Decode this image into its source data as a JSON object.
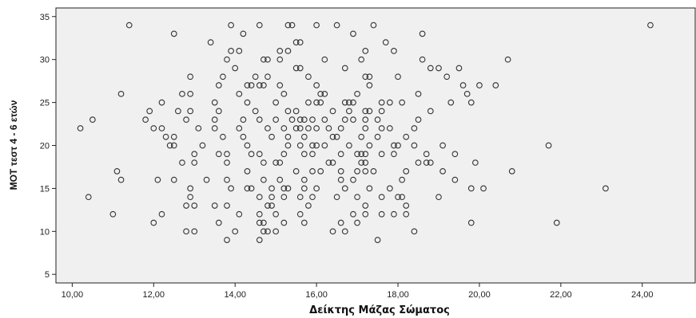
{
  "chart_data": {
    "type": "scatter",
    "title": "",
    "xlabel": "Δείκτης Μάζας Σώματος",
    "ylabel": "MOT τεστ 4 - 6 ετών",
    "xlim": [
      9.6,
      25.3
    ],
    "ylim": [
      4,
      36
    ],
    "x_ticks": [
      10,
      12,
      14,
      16,
      18,
      20,
      22,
      24
    ],
    "x_tick_labels": [
      "10,00",
      "12,00",
      "14,00",
      "16,00",
      "18,00",
      "20,00",
      "22,00",
      "24,00"
    ],
    "y_ticks": [
      5,
      10,
      15,
      20,
      25,
      30,
      35
    ],
    "y_tick_labels": [
      "5",
      "10",
      "15",
      "20",
      "25",
      "30",
      "35"
    ],
    "grid": false,
    "legend": "none",
    "colors": {
      "plot_bg": "#f0f0f0",
      "marker": "#333333"
    },
    "points": [
      [
        11.4,
        34
      ],
      [
        13.9,
        34
      ],
      [
        14.6,
        34
      ],
      [
        15.3,
        34
      ],
      [
        15.4,
        34
      ],
      [
        16.0,
        34
      ],
      [
        16.5,
        34
      ],
      [
        17.4,
        34
      ],
      [
        24.2,
        34
      ],
      [
        12.5,
        33
      ],
      [
        14.2,
        33
      ],
      [
        16.9,
        33
      ],
      [
        18.6,
        33
      ],
      [
        13.4,
        32
      ],
      [
        15.5,
        32
      ],
      [
        15.6,
        32
      ],
      [
        17.7,
        32
      ],
      [
        13.9,
        31
      ],
      [
        14.1,
        31
      ],
      [
        15.1,
        31
      ],
      [
        15.3,
        31
      ],
      [
        17.2,
        31
      ],
      [
        17.9,
        31
      ],
      [
        13.8,
        30
      ],
      [
        14.7,
        30
      ],
      [
        14.8,
        30
      ],
      [
        15.1,
        30
      ],
      [
        16.2,
        30
      ],
      [
        17.1,
        30
      ],
      [
        18.6,
        30
      ],
      [
        20.7,
        30
      ],
      [
        14.0,
        29
      ],
      [
        15.5,
        29
      ],
      [
        15.6,
        29
      ],
      [
        16.7,
        29
      ],
      [
        18.8,
        29
      ],
      [
        19.0,
        29
      ],
      [
        19.5,
        29
      ],
      [
        12.9,
        28
      ],
      [
        13.7,
        28
      ],
      [
        14.5,
        28
      ],
      [
        14.8,
        28
      ],
      [
        15.8,
        28
      ],
      [
        17.2,
        28
      ],
      [
        17.3,
        28
      ],
      [
        18.0,
        28
      ],
      [
        19.2,
        28
      ],
      [
        13.6,
        27
      ],
      [
        14.3,
        27
      ],
      [
        14.4,
        27
      ],
      [
        14.6,
        27
      ],
      [
        14.7,
        27
      ],
      [
        15.1,
        27
      ],
      [
        16.0,
        27
      ],
      [
        17.3,
        27
      ],
      [
        19.6,
        27
      ],
      [
        20.0,
        27
      ],
      [
        20.4,
        27
      ],
      [
        11.2,
        26
      ],
      [
        12.7,
        26
      ],
      [
        12.9,
        26
      ],
      [
        14.1,
        26
      ],
      [
        15.2,
        26
      ],
      [
        16.1,
        26
      ],
      [
        16.2,
        26
      ],
      [
        17.0,
        26
      ],
      [
        18.5,
        26
      ],
      [
        19.7,
        26
      ],
      [
        12.2,
        25
      ],
      [
        13.5,
        25
      ],
      [
        14.3,
        25
      ],
      [
        15.0,
        25
      ],
      [
        15.8,
        25
      ],
      [
        16.0,
        25
      ],
      [
        16.1,
        25
      ],
      [
        16.7,
        25
      ],
      [
        16.8,
        25
      ],
      [
        16.9,
        25
      ],
      [
        17.6,
        25
      ],
      [
        17.8,
        25
      ],
      [
        18.1,
        25
      ],
      [
        19.3,
        25
      ],
      [
        19.8,
        25
      ],
      [
        11.9,
        24
      ],
      [
        12.6,
        24
      ],
      [
        12.9,
        24
      ],
      [
        13.6,
        24
      ],
      [
        14.5,
        24
      ],
      [
        15.3,
        24
      ],
      [
        15.5,
        24
      ],
      [
        16.4,
        24
      ],
      [
        16.8,
        24
      ],
      [
        17.2,
        24
      ],
      [
        17.3,
        24
      ],
      [
        17.6,
        24
      ],
      [
        18.8,
        24
      ],
      [
        10.5,
        23
      ],
      [
        11.8,
        23
      ],
      [
        12.8,
        23
      ],
      [
        13.5,
        23
      ],
      [
        14.2,
        23
      ],
      [
        14.6,
        23
      ],
      [
        15.0,
        23
      ],
      [
        15.4,
        23
      ],
      [
        15.6,
        23
      ],
      [
        15.7,
        23
      ],
      [
        15.9,
        23
      ],
      [
        16.2,
        23
      ],
      [
        16.7,
        23
      ],
      [
        16.9,
        23
      ],
      [
        17.2,
        23
      ],
      [
        17.5,
        23
      ],
      [
        18.5,
        23
      ],
      [
        10.2,
        22
      ],
      [
        12.0,
        22
      ],
      [
        12.2,
        22
      ],
      [
        13.1,
        22
      ],
      [
        13.5,
        22
      ],
      [
        14.1,
        22
      ],
      [
        14.8,
        22
      ],
      [
        15.2,
        22
      ],
      [
        15.5,
        22
      ],
      [
        15.6,
        22
      ],
      [
        15.8,
        22
      ],
      [
        16.0,
        22
      ],
      [
        16.3,
        22
      ],
      [
        16.6,
        22
      ],
      [
        17.2,
        22
      ],
      [
        17.6,
        22
      ],
      [
        17.8,
        22
      ],
      [
        18.4,
        22
      ],
      [
        12.3,
        21
      ],
      [
        12.5,
        21
      ],
      [
        13.7,
        21
      ],
      [
        14.2,
        21
      ],
      [
        14.9,
        21
      ],
      [
        15.3,
        21
      ],
      [
        15.7,
        21
      ],
      [
        16.4,
        21
      ],
      [
        16.5,
        21
      ],
      [
        17.1,
        21
      ],
      [
        17.5,
        21
      ],
      [
        18.2,
        21
      ],
      [
        12.4,
        20
      ],
      [
        12.5,
        20
      ],
      [
        13.2,
        20
      ],
      [
        14.3,
        20
      ],
      [
        15.3,
        20
      ],
      [
        15.6,
        20
      ],
      [
        15.9,
        20
      ],
      [
        16.0,
        20
      ],
      [
        16.2,
        20
      ],
      [
        16.8,
        20
      ],
      [
        17.3,
        20
      ],
      [
        17.9,
        20
      ],
      [
        18.0,
        20
      ],
      [
        18.4,
        20
      ],
      [
        19.1,
        20
      ],
      [
        21.7,
        20
      ],
      [
        13.0,
        19
      ],
      [
        13.6,
        19
      ],
      [
        13.8,
        19
      ],
      [
        14.4,
        19
      ],
      [
        14.6,
        19
      ],
      [
        15.2,
        19
      ],
      [
        15.7,
        19
      ],
      [
        15.9,
        19
      ],
      [
        16.6,
        19
      ],
      [
        17.0,
        19
      ],
      [
        17.1,
        19
      ],
      [
        17.2,
        19
      ],
      [
        17.6,
        19
      ],
      [
        17.9,
        19
      ],
      [
        18.7,
        19
      ],
      [
        19.4,
        19
      ],
      [
        12.7,
        18
      ],
      [
        13.0,
        18
      ],
      [
        13.8,
        18
      ],
      [
        14.7,
        18
      ],
      [
        15.0,
        18
      ],
      [
        15.1,
        18
      ],
      [
        16.3,
        18
      ],
      [
        16.4,
        18
      ],
      [
        17.1,
        18
      ],
      [
        17.2,
        18
      ],
      [
        18.5,
        18
      ],
      [
        18.7,
        18
      ],
      [
        18.8,
        18
      ],
      [
        19.9,
        18
      ],
      [
        11.1,
        17
      ],
      [
        14.3,
        17
      ],
      [
        15.5,
        17
      ],
      [
        15.9,
        17
      ],
      [
        16.1,
        17
      ],
      [
        16.6,
        17
      ],
      [
        17.0,
        17
      ],
      [
        17.2,
        17
      ],
      [
        17.4,
        17
      ],
      [
        18.2,
        17
      ],
      [
        19.1,
        17
      ],
      [
        20.8,
        17
      ],
      [
        11.2,
        16
      ],
      [
        12.1,
        16
      ],
      [
        12.5,
        16
      ],
      [
        13.3,
        16
      ],
      [
        13.8,
        16
      ],
      [
        14.7,
        16
      ],
      [
        15.1,
        16
      ],
      [
        15.7,
        16
      ],
      [
        16.6,
        16
      ],
      [
        16.9,
        16
      ],
      [
        18.1,
        16
      ],
      [
        19.4,
        16
      ],
      [
        12.9,
        15
      ],
      [
        13.9,
        15
      ],
      [
        14.3,
        15
      ],
      [
        14.4,
        15
      ],
      [
        14.9,
        15
      ],
      [
        15.2,
        15
      ],
      [
        15.3,
        15
      ],
      [
        15.7,
        15
      ],
      [
        16.0,
        15
      ],
      [
        16.7,
        15
      ],
      [
        17.3,
        15
      ],
      [
        17.8,
        15
      ],
      [
        19.8,
        15
      ],
      [
        20.1,
        15
      ],
      [
        23.1,
        15
      ],
      [
        10.4,
        14
      ],
      [
        12.9,
        14
      ],
      [
        14.6,
        14
      ],
      [
        14.9,
        14
      ],
      [
        15.2,
        14
      ],
      [
        15.6,
        14
      ],
      [
        15.9,
        14
      ],
      [
        16.5,
        14
      ],
      [
        17.0,
        14
      ],
      [
        17.6,
        14
      ],
      [
        18.0,
        14
      ],
      [
        18.1,
        14
      ],
      [
        19.0,
        14
      ],
      [
        12.8,
        13
      ],
      [
        13.0,
        13
      ],
      [
        13.5,
        13
      ],
      [
        13.8,
        13
      ],
      [
        14.8,
        13
      ],
      [
        14.9,
        13
      ],
      [
        15.8,
        13
      ],
      [
        17.2,
        13
      ],
      [
        18.2,
        13
      ],
      [
        11.0,
        12
      ],
      [
        12.2,
        12
      ],
      [
        14.1,
        12
      ],
      [
        14.6,
        12
      ],
      [
        15.0,
        12
      ],
      [
        15.6,
        12
      ],
      [
        16.9,
        12
      ],
      [
        17.2,
        12
      ],
      [
        17.6,
        12
      ],
      [
        17.9,
        12
      ],
      [
        18.2,
        12
      ],
      [
        12.0,
        11
      ],
      [
        13.6,
        11
      ],
      [
        14.6,
        11
      ],
      [
        14.7,
        11
      ],
      [
        15.2,
        11
      ],
      [
        15.7,
        11
      ],
      [
        16.6,
        11
      ],
      [
        17.0,
        11
      ],
      [
        19.8,
        11
      ],
      [
        21.9,
        11
      ],
      [
        12.8,
        10
      ],
      [
        13.0,
        10
      ],
      [
        14.0,
        10
      ],
      [
        14.7,
        10
      ],
      [
        14.8,
        10
      ],
      [
        15.0,
        10
      ],
      [
        16.4,
        10
      ],
      [
        16.7,
        10
      ],
      [
        18.4,
        10
      ],
      [
        13.8,
        9
      ],
      [
        14.6,
        9
      ],
      [
        17.5,
        9
      ]
    ]
  }
}
